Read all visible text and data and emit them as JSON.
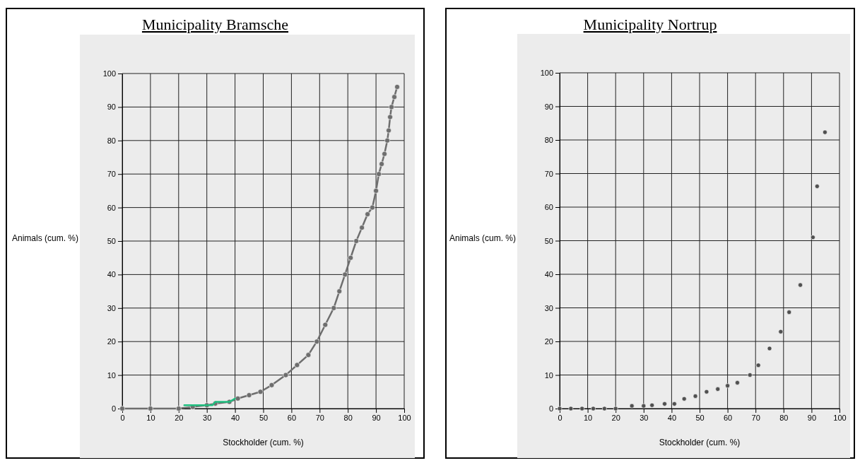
{
  "chart_data": [
    {
      "type": "line",
      "title": "Municipality Bramsche",
      "xlabel": "Stockholder (cum. %)",
      "ylabel": "Animals (cum. %)",
      "xlim": [
        0,
        100
      ],
      "ylim": [
        0,
        100
      ],
      "xticks": [
        0,
        10,
        20,
        30,
        40,
        50,
        60,
        70,
        80,
        90,
        100
      ],
      "yticks": [
        0,
        10,
        20,
        30,
        40,
        50,
        60,
        70,
        80,
        90,
        100
      ],
      "grid": true,
      "marker": "circle",
      "line_style": "solid",
      "series": [
        {
          "color": "#6e6e6e",
          "x": [
            0,
            10,
            20,
            25,
            30,
            33,
            38,
            41,
            45,
            49,
            53,
            58,
            62,
            66,
            69,
            72,
            75,
            77,
            79,
            81,
            83,
            85,
            87,
            88.7,
            90,
            91,
            92,
            93,
            94,
            94.5,
            95,
            95.5,
            96.5,
            97.5
          ],
          "values": [
            0,
            0,
            0,
            0.5,
            1,
            1.5,
            2,
            3,
            4,
            5,
            7,
            10,
            13,
            16,
            20,
            25,
            30,
            35,
            40,
            45,
            50,
            54,
            58,
            60,
            65,
            70,
            73,
            76,
            80,
            83,
            87,
            90,
            93,
            96
          ]
        },
        {
          "color": "#1fbf7f",
          "marker": "none",
          "x": [
            22,
            32,
            33,
            38,
            40
          ],
          "values": [
            1,
            1,
            2,
            2,
            3
          ]
        }
      ]
    },
    {
      "type": "scatter",
      "title": "Municipality Nortrup",
      "xlabel": "Stockholder (cum. %)",
      "ylabel": "Animals (cum. %)",
      "xlim": [
        0,
        100
      ],
      "ylim": [
        0,
        100
      ],
      "xticks": [
        0,
        10,
        20,
        30,
        40,
        50,
        60,
        70,
        80,
        90,
        100
      ],
      "yticks": [
        0,
        10,
        20,
        30,
        40,
        50,
        60,
        70,
        80,
        90,
        100
      ],
      "grid": true,
      "marker": "circle",
      "series": [
        {
          "color": "#505050",
          "x": [
            0,
            4,
            8,
            12,
            16,
            20,
            25.8,
            30,
            33,
            37.5,
            41,
            44.5,
            48.5,
            52.5,
            56.5,
            60,
            63.5,
            68,
            71,
            75,
            79,
            82,
            86,
            90.5,
            92,
            94.8
          ],
          "values": [
            0,
            0,
            0,
            0,
            0,
            0,
            0.8,
            0.8,
            1,
            1.4,
            1.4,
            2.9,
            3.7,
            5,
            5.8,
            6.8,
            7.7,
            10,
            12.9,
            17.9,
            22.9,
            28.7,
            36.8,
            51,
            66.2,
            82.3
          ]
        }
      ]
    }
  ]
}
